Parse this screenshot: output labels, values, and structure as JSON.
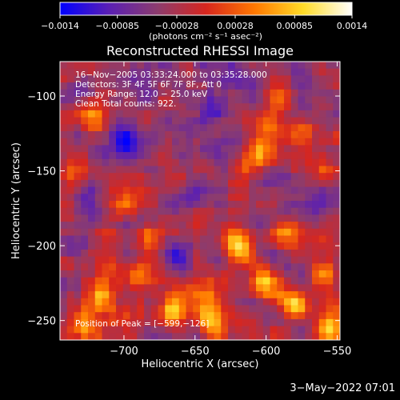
{
  "chart_data": {
    "type": "heatmap",
    "title": "Reconstructed RHESSI Image",
    "xlabel": "Heliocentric X (arcsec)",
    "ylabel": "Heliocentric Y (arcsec)",
    "xlim": [
      -745,
      -548
    ],
    "ylim": [
      -263,
      -77
    ],
    "x_ticks": [
      -700,
      -650,
      -600,
      -550
    ],
    "y_ticks": [
      -100,
      -150,
      -200,
      -250
    ],
    "x_tick_labels": [
      "−700",
      "−650",
      "−600",
      "−550"
    ],
    "y_tick_labels": [
      "−100",
      "−150",
      "−200",
      "−250"
    ],
    "colorbar": {
      "min": -0.0014,
      "max": 0.0014,
      "tick_values": [
        -0.0014,
        -0.00085,
        -0.00028,
        0.00028,
        0.00085,
        0.0014
      ],
      "tick_labels": [
        "−0.0014",
        "−0.00085",
        "−0.00028",
        "0.00028",
        "0.00085",
        "0.0014"
      ],
      "unit_text": "(photons cm⁻² s⁻¹ asec⁻²)",
      "colors": [
        "#0000ff",
        "#5a1fb4",
        "#8c3c6e",
        "#d7261e",
        "#ff7800",
        "#ffdc28",
        "#ffffff"
      ]
    },
    "annotations": [
      "16−Nov−2005 03:33:24.000 to 03:35:28.000",
      "Detectors: 3F 4F 5F 6F 7F 8F, Att 0",
      "Energy Range: 12.0 − 25.0 keV",
      "Clean     Total counts: 922."
    ],
    "peak_text": "Position of Peak = [−599,−126]",
    "hotspots": [
      {
        "x": -598,
        "y": -118,
        "value": 0.0012
      },
      {
        "x": -590,
        "y": -100,
        "value": 0.0008
      },
      {
        "x": -605,
        "y": -140,
        "value": 0.0009
      },
      {
        "x": -575,
        "y": -125,
        "value": 0.001
      },
      {
        "x": -560,
        "y": -150,
        "value": 0.0008
      },
      {
        "x": -720,
        "y": -115,
        "value": 0.001
      },
      {
        "x": -700,
        "y": -170,
        "value": 0.0008
      },
      {
        "x": -735,
        "y": -150,
        "value": 0.0007
      },
      {
        "x": -680,
        "y": -195,
        "value": 0.0009
      },
      {
        "x": -690,
        "y": -220,
        "value": 0.001
      },
      {
        "x": -715,
        "y": -235,
        "value": 0.0009
      },
      {
        "x": -665,
        "y": -245,
        "value": 0.0011
      },
      {
        "x": -640,
        "y": -250,
        "value": 0.0012
      },
      {
        "x": -620,
        "y": -200,
        "value": 0.001
      },
      {
        "x": -600,
        "y": -225,
        "value": 0.0009
      },
      {
        "x": -580,
        "y": -240,
        "value": 0.0011
      },
      {
        "x": -560,
        "y": -220,
        "value": 0.001
      },
      {
        "x": -555,
        "y": -255,
        "value": 0.0012
      },
      {
        "x": -620,
        "y": -165,
        "value": 0.0008
      },
      {
        "x": -585,
        "y": -190,
        "value": 0.0009
      },
      {
        "x": -650,
        "y": -230,
        "value": 0.0008
      },
      {
        "x": -730,
        "y": -255,
        "value": 0.001
      }
    ],
    "coldspots": [
      {
        "x": -660,
        "y": -205,
        "value": -0.0009
      },
      {
        "x": -640,
        "y": -110,
        "value": -0.0006
      },
      {
        "x": -700,
        "y": -130,
        "value": -0.0006
      },
      {
        "x": -690,
        "y": -90,
        "value": -0.0005
      },
      {
        "x": -610,
        "y": -95,
        "value": -0.0006
      },
      {
        "x": -730,
        "y": -200,
        "value": -0.0005
      }
    ]
  },
  "footer": {
    "date": "3−May−2022 07:01"
  }
}
